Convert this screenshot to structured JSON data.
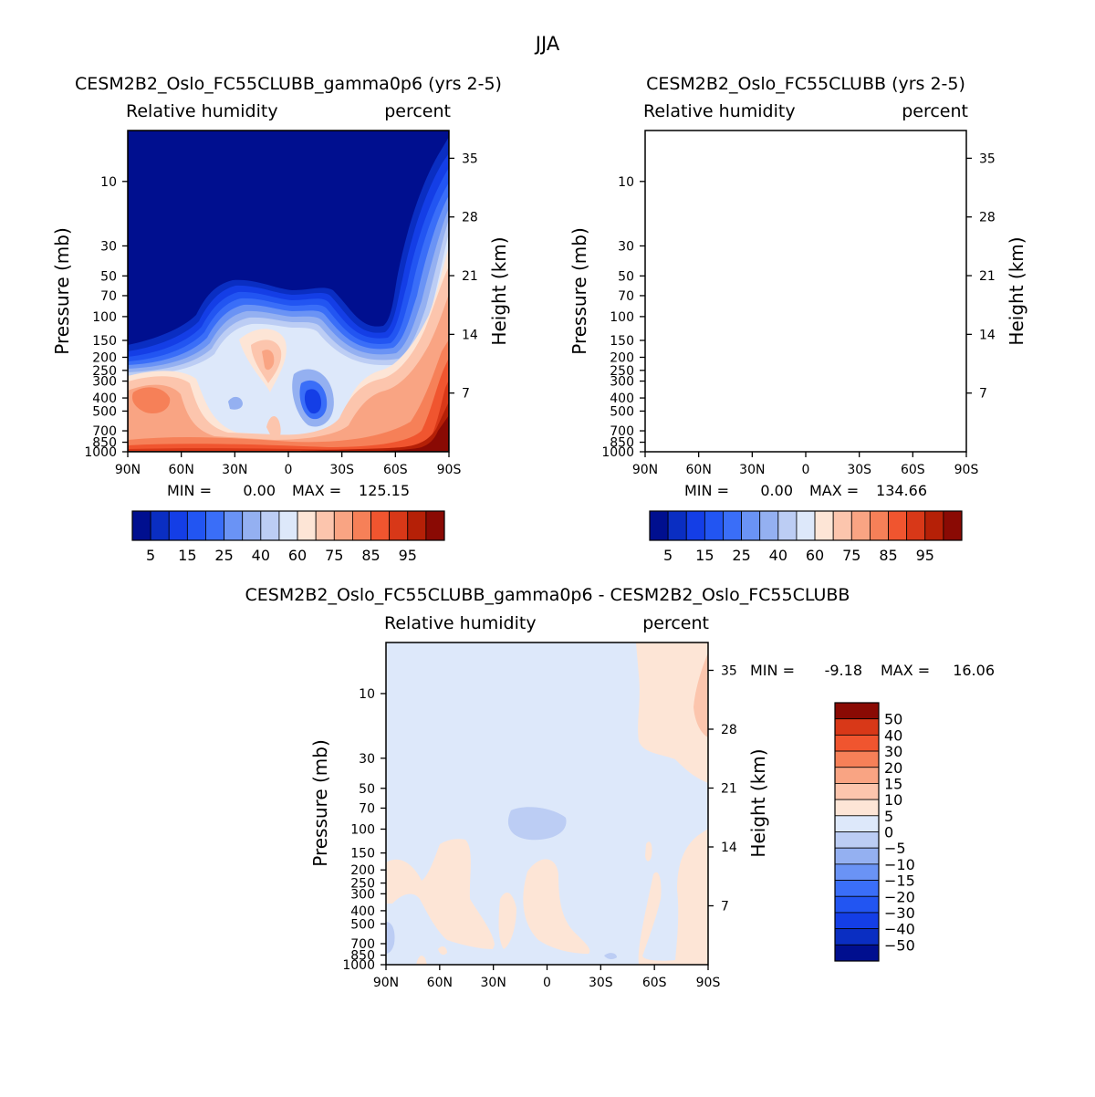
{
  "figure": {
    "title": "JJA"
  },
  "chart_data": [
    {
      "type": "heatmap",
      "title": "CESM2B2_Oslo_FC55CLUBB_gamma0p6 (yrs 2-5)",
      "variable": "Relative humidity",
      "units": "percent",
      "xlabel": "",
      "ylabel": "Pressure (mb)",
      "ylabel_right": "Height (km)",
      "x_ticks": [
        "90N",
        "60N",
        "30N",
        "0",
        "30S",
        "60S",
        "90S"
      ],
      "y_ticks": [
        "10",
        "30",
        "50",
        "70",
        "100",
        "150",
        "200",
        "250",
        "300",
        "400",
        "500",
        "700",
        "850",
        "1000"
      ],
      "y_right_ticks": [
        "35",
        "28",
        "21",
        "14",
        "7"
      ],
      "stats": {
        "min_label": "MIN =",
        "min": "0.00",
        "max_label": "MAX =",
        "max": "125.15"
      },
      "levels": [
        5,
        10,
        15,
        20,
        25,
        30,
        40,
        50,
        60,
        70,
        75,
        80,
        85,
        90,
        95
      ],
      "colorbar_labels": [
        "5",
        "15",
        "25",
        "40",
        "60",
        "75",
        "85",
        "95"
      ],
      "colors": [
        "#000f8f",
        "#0a2ec2",
        "#143ee6",
        "#2255f2",
        "#3a6ef8",
        "#6a93f5",
        "#94b0f1",
        "#bccdf4",
        "#dde8fa",
        "#fde5d6",
        "#fcc5ad",
        "#f9a483",
        "#f68058",
        "#f0552f",
        "#d83818",
        "#b52007",
        "#8a0a04"
      ]
    },
    {
      "type": "heatmap",
      "title": "CESM2B2_Oslo_FC55CLUBB (yrs 2-5)",
      "variable": "Relative humidity",
      "units": "percent",
      "xlabel": "",
      "ylabel": "Pressure (mb)",
      "ylabel_right": "Height (km)",
      "x_ticks": [
        "90N",
        "60N",
        "30N",
        "0",
        "30S",
        "60S",
        "90S"
      ],
      "y_ticks": [
        "10",
        "30",
        "50",
        "70",
        "100",
        "150",
        "200",
        "250",
        "300",
        "400",
        "500",
        "700",
        "850",
        "1000"
      ],
      "y_right_ticks": [
        "35",
        "28",
        "21",
        "14",
        "7"
      ],
      "stats": {
        "min_label": "MIN =",
        "min": "0.00",
        "max_label": "MAX =",
        "max": "134.66"
      },
      "levels": [
        5,
        10,
        15,
        20,
        25,
        30,
        40,
        50,
        60,
        70,
        75,
        80,
        85,
        90,
        95
      ],
      "colorbar_labels": [
        "5",
        "15",
        "25",
        "40",
        "60",
        "75",
        "85",
        "95"
      ],
      "colors": [
        "#000f8f",
        "#0a2ec2",
        "#143ee6",
        "#2255f2",
        "#3a6ef8",
        "#6a93f5",
        "#94b0f1",
        "#bccdf4",
        "#dde8fa",
        "#fde5d6",
        "#fcc5ad",
        "#f9a483",
        "#f68058",
        "#f0552f",
        "#d83818",
        "#b52007",
        "#8a0a04"
      ]
    },
    {
      "type": "heatmap",
      "title": "CESM2B2_Oslo_FC55CLUBB_gamma0p6 - CESM2B2_Oslo_FC55CLUBB",
      "variable": "Relative humidity",
      "units": "percent",
      "xlabel": "",
      "ylabel": "Pressure (mb)",
      "ylabel_right": "Height (km)",
      "x_ticks": [
        "90N",
        "60N",
        "30N",
        "0",
        "30S",
        "60S",
        "90S"
      ],
      "y_ticks": [
        "10",
        "30",
        "50",
        "70",
        "100",
        "150",
        "200",
        "250",
        "300",
        "400",
        "500",
        "700",
        "850",
        "1000"
      ],
      "y_right_ticks": [
        "35",
        "28",
        "21",
        "14",
        "7"
      ],
      "stats": {
        "min_label": "MIN =",
        "min": "-9.18",
        "max_label": "MAX =",
        "max": "16.06"
      },
      "levels": [
        -50,
        -40,
        -30,
        -20,
        -15,
        -10,
        -5,
        0,
        5,
        10,
        15,
        20,
        30,
        40,
        50
      ],
      "colorbar_labels": [
        "50",
        "40",
        "30",
        "20",
        "15",
        "10",
        "5",
        "0",
        "−5",
        "−10",
        "−15",
        "−20",
        "−30",
        "−40",
        "−50"
      ],
      "colors": [
        "#000f8f",
        "#0a2ec2",
        "#143ee6",
        "#2255f2",
        "#3a6ef8",
        "#6a93f5",
        "#94b0f1",
        "#bccdf4",
        "#dde8fa",
        "#fde5d6",
        "#fcc5ad",
        "#f9a483",
        "#f68058",
        "#f0552f",
        "#d83818",
        "#8a0a04"
      ]
    }
  ]
}
